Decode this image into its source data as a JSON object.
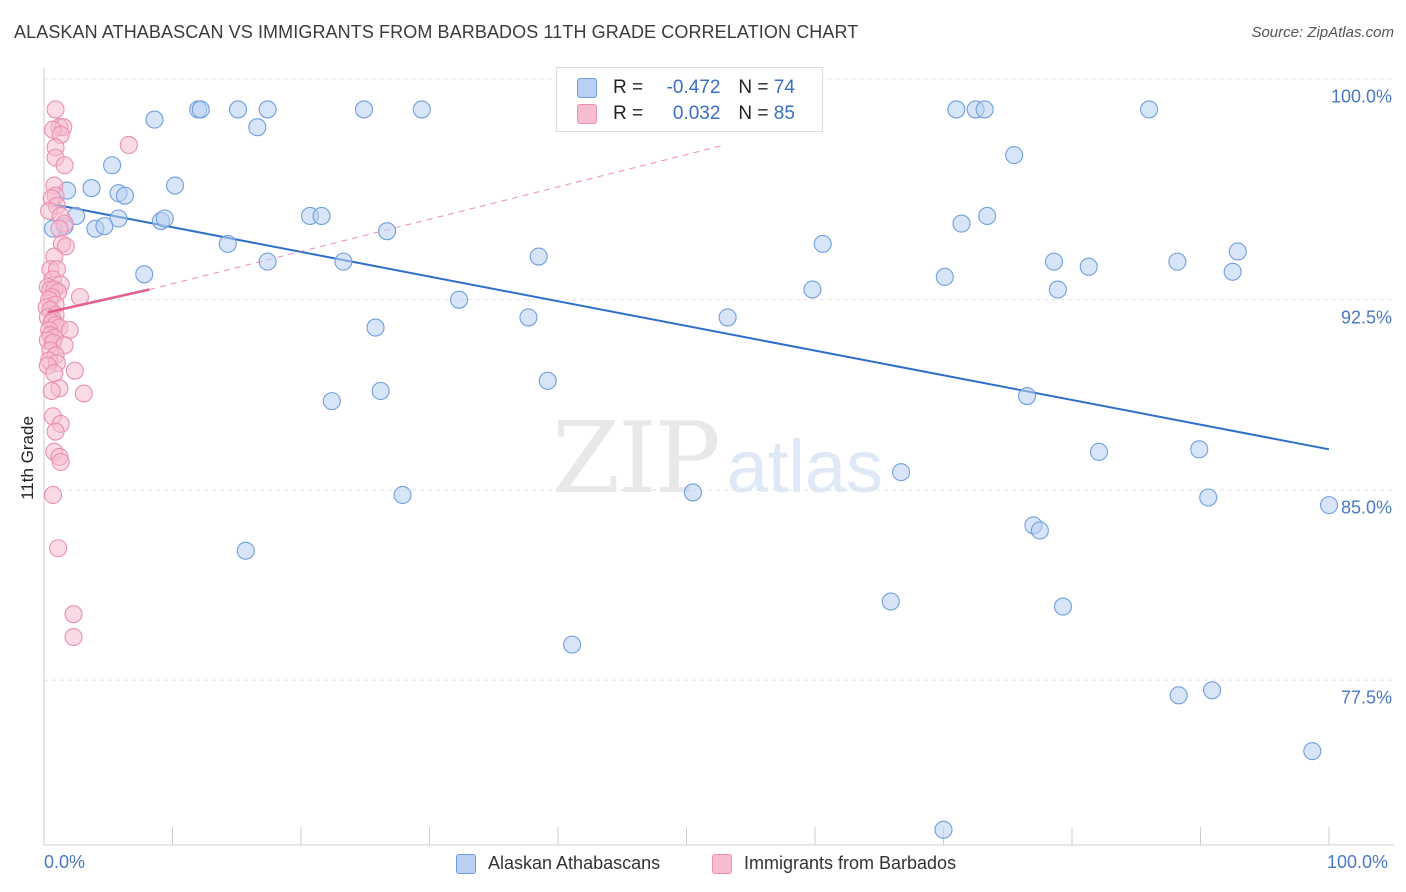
{
  "title": "ALASKAN ATHABASCAN VS IMMIGRANTS FROM BARBADOS 11TH GRADE CORRELATION CHART",
  "source": "Source: ZipAtlas.com",
  "watermark": {
    "zip": "ZIP",
    "atlas": "atlas"
  },
  "colors": {
    "blue_fill": "#b8d0f2",
    "blue_stroke": "#6f9fdc",
    "blue_line": "#2f6fc9",
    "pink_fill": "#f6bcd0",
    "pink_stroke": "#e890b0",
    "pink_line": "#e0608e",
    "grid": "#e2e2e2",
    "axis": "#cccccc",
    "tick_text": "#4a78c4"
  },
  "stats": {
    "r_label": "R =",
    "n_label": "N =",
    "blue": {
      "r": "-0.472",
      "n": "74"
    },
    "pink": {
      "r": "0.032",
      "n": "85"
    }
  },
  "chart_data": {
    "type": "scatter",
    "title": "ALASKAN ATHABASCAN VS IMMIGRANTS FROM BARBADOS 11TH GRADE CORRELATION CHART",
    "xlabel": "",
    "ylabel": "11th Grade",
    "xlim": [
      0,
      100
    ],
    "ylim": [
      71.0,
      101.2
    ],
    "x_tick_labels": [
      "0.0%",
      "100.0%"
    ],
    "y_ticks": [
      {
        "value": 100.0,
        "label": "100.0%"
      },
      {
        "value": 92.5,
        "label": "92.5%"
      },
      {
        "value": 85.0,
        "label": "85.0%"
      },
      {
        "value": 77.5,
        "label": "77.5%"
      }
    ],
    "grid": true,
    "legend": [
      "Alaskan Athabascans",
      "Immigrants from Barbados"
    ],
    "series": [
      {
        "name": "Alaskan Athabascans",
        "color": "blue",
        "trend": {
          "x0": 0.3,
          "y0": 96.3,
          "x1": 100.0,
          "y1": 86.6
        },
        "points": [
          [
            12.0,
            100
          ],
          [
            12.2,
            100
          ],
          [
            15.1,
            100
          ],
          [
            17.4,
            100
          ],
          [
            24.9,
            100
          ],
          [
            29.4,
            100
          ],
          [
            71.0,
            100
          ],
          [
            72.5,
            100
          ],
          [
            73.2,
            100
          ],
          [
            86.0,
            100
          ],
          [
            8.6,
            99.6
          ],
          [
            16.6,
            99.3
          ],
          [
            75.5,
            98.2
          ],
          [
            5.3,
            97.8
          ],
          [
            10.2,
            97.0
          ],
          [
            3.7,
            96.9
          ],
          [
            5.8,
            96.7
          ],
          [
            6.3,
            96.6
          ],
          [
            1.8,
            96.8
          ],
          [
            2.5,
            95.8
          ],
          [
            5.8,
            95.7
          ],
          [
            9.1,
            95.6
          ],
          [
            9.4,
            95.7
          ],
          [
            20.7,
            95.8
          ],
          [
            21.6,
            95.8
          ],
          [
            71.4,
            95.5
          ],
          [
            73.4,
            95.8
          ],
          [
            1.6,
            95.4
          ],
          [
            0.7,
            95.3
          ],
          [
            4.0,
            95.3
          ],
          [
            4.7,
            95.4
          ],
          [
            26.7,
            95.2
          ],
          [
            14.3,
            94.7
          ],
          [
            60.6,
            94.7
          ],
          [
            38.5,
            94.2
          ],
          [
            17.4,
            94.0
          ],
          [
            23.3,
            94.0
          ],
          [
            78.6,
            94.0
          ],
          [
            81.3,
            93.8
          ],
          [
            88.2,
            94.0
          ],
          [
            92.9,
            94.4
          ],
          [
            92.5,
            93.6
          ],
          [
            7.8,
            93.5
          ],
          [
            70.1,
            93.4
          ],
          [
            59.8,
            92.9
          ],
          [
            78.9,
            92.9
          ],
          [
            32.3,
            92.5
          ],
          [
            53.2,
            91.8
          ],
          [
            37.7,
            91.8
          ],
          [
            25.8,
            91.4
          ],
          [
            39.2,
            89.3
          ],
          [
            26.2,
            88.9
          ],
          [
            76.5,
            88.7
          ],
          [
            22.4,
            88.5
          ],
          [
            89.9,
            86.6
          ],
          [
            82.1,
            86.5
          ],
          [
            66.7,
            85.7
          ],
          [
            50.5,
            84.9
          ],
          [
            27.9,
            84.8
          ],
          [
            90.6,
            84.7
          ],
          [
            100.0,
            84.4
          ],
          [
            77.0,
            83.6
          ],
          [
            77.5,
            83.4
          ],
          [
            15.7,
            82.6
          ],
          [
            65.9,
            80.6
          ],
          [
            79.3,
            80.4
          ],
          [
            41.1,
            78.9
          ],
          [
            88.3,
            76.9
          ],
          [
            90.9,
            77.1
          ],
          [
            98.7,
            74.7
          ],
          [
            70.0,
            71.6
          ]
        ]
      },
      {
        "name": "Immigrants from Barbados",
        "color": "pink",
        "trend": {
          "x0": 0.3,
          "y0": 92.0,
          "x1": 8.2,
          "y1": 92.9,
          "dash_to": {
            "x": 53.0,
            "y": 98.6
          }
        },
        "points": [
          [
            0.9,
            100
          ],
          [
            1.2,
            99.3
          ],
          [
            1.5,
            99.3
          ],
          [
            0.7,
            99.2
          ],
          [
            1.3,
            99.0
          ],
          [
            6.6,
            98.6
          ],
          [
            0.9,
            98.5
          ],
          [
            0.9,
            98.1
          ],
          [
            1.6,
            97.8
          ],
          [
            0.8,
            97.0
          ],
          [
            0.9,
            96.6
          ],
          [
            0.6,
            96.5
          ],
          [
            1.0,
            96.2
          ],
          [
            0.4,
            96.0
          ],
          [
            1.3,
            95.8
          ],
          [
            1.6,
            95.5
          ],
          [
            1.2,
            95.3
          ],
          [
            1.4,
            94.7
          ],
          [
            1.7,
            94.6
          ],
          [
            0.8,
            94.2
          ],
          [
            0.5,
            93.7
          ],
          [
            1.0,
            93.7
          ],
          [
            0.7,
            93.3
          ],
          [
            1.3,
            93.1
          ],
          [
            0.3,
            93.0
          ],
          [
            0.5,
            92.9
          ],
          [
            0.8,
            92.9
          ],
          [
            1.1,
            92.8
          ],
          [
            0.6,
            92.6
          ],
          [
            2.8,
            92.6
          ],
          [
            0.4,
            92.5
          ],
          [
            0.9,
            92.3
          ],
          [
            0.2,
            92.2
          ],
          [
            0.5,
            92.1
          ],
          [
            0.9,
            91.9
          ],
          [
            0.3,
            91.8
          ],
          [
            0.7,
            91.7
          ],
          [
            0.6,
            91.6
          ],
          [
            0.9,
            91.5
          ],
          [
            1.2,
            91.4
          ],
          [
            0.4,
            91.3
          ],
          [
            2.0,
            91.3
          ],
          [
            0.5,
            91.1
          ],
          [
            0.8,
            91.0
          ],
          [
            0.3,
            90.9
          ],
          [
            0.7,
            90.8
          ],
          [
            1.6,
            90.7
          ],
          [
            0.5,
            90.5
          ],
          [
            0.9,
            90.3
          ],
          [
            0.4,
            90.1
          ],
          [
            1.0,
            90.0
          ],
          [
            0.3,
            89.9
          ],
          [
            2.4,
            89.7
          ],
          [
            0.8,
            89.6
          ],
          [
            1.2,
            89.0
          ],
          [
            0.6,
            88.9
          ],
          [
            3.1,
            88.8
          ],
          [
            0.7,
            87.9
          ],
          [
            1.3,
            87.6
          ],
          [
            0.9,
            87.3
          ],
          [
            0.8,
            86.5
          ],
          [
            1.2,
            86.3
          ],
          [
            1.3,
            86.1
          ],
          [
            0.7,
            84.8
          ],
          [
            1.1,
            82.7
          ],
          [
            2.3,
            80.1
          ],
          [
            2.3,
            79.2
          ]
        ]
      }
    ]
  },
  "legend": {
    "blue_label": "Alaskan Athabascans",
    "pink_label": "Immigrants from Barbados"
  }
}
